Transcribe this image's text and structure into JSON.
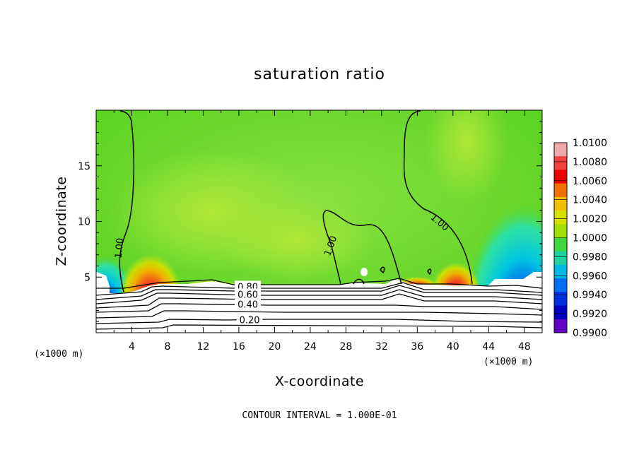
{
  "chart_data": {
    "type": "heatmap",
    "title": "saturation ratio",
    "xlabel": "X-coordinate",
    "ylabel": "Z-coordinate",
    "x_unit": "(×1000 m)",
    "y_unit": "(×1000 m)",
    "xlim": [
      0,
      50
    ],
    "ylim": [
      0,
      20
    ],
    "x_ticks": [
      4,
      8,
      12,
      16,
      20,
      24,
      28,
      32,
      36,
      40,
      44,
      48
    ],
    "y_ticks": [
      5,
      10,
      15
    ],
    "footer": "CONTOUR INTERVAL = 1.000E-01",
    "colorbar": {
      "levels": [
        "1.0100",
        "1.0080",
        "1.0060",
        "1.0040",
        "1.0020",
        "1.0000",
        "0.9980",
        "0.9960",
        "0.9940",
        "0.9920",
        "0.9900"
      ],
      "colors": [
        "#f0a8a8",
        "#f04040",
        "#f00000",
        "#f07000",
        "#f0c000",
        "#d8e000",
        "#a0e000",
        "#40d840",
        "#20d0a0",
        "#00b8e8",
        "#0070f0",
        "#0030e0",
        "#0000c0",
        "#6000c0"
      ]
    },
    "contour_labels": [
      {
        "text": "1.00",
        "x": 2.6,
        "y": 7.6,
        "angle": -85
      },
      {
        "text": "1.00",
        "x": 26.3,
        "y": 7.8,
        "angle": -70
      },
      {
        "text": "1.00",
        "x": 38.5,
        "y": 9.9,
        "angle": 40
      },
      {
        "text": "0.80",
        "x": 17.0,
        "y": 4.1,
        "angle": 0
      },
      {
        "text": "0.60",
        "x": 17.0,
        "y": 3.4,
        "angle": 0
      },
      {
        "text": "0.40",
        "x": 17.0,
        "y": 2.5,
        "angle": 0
      },
      {
        "text": "0.20",
        "x": 17.2,
        "y": 1.1,
        "angle": 0
      }
    ]
  }
}
